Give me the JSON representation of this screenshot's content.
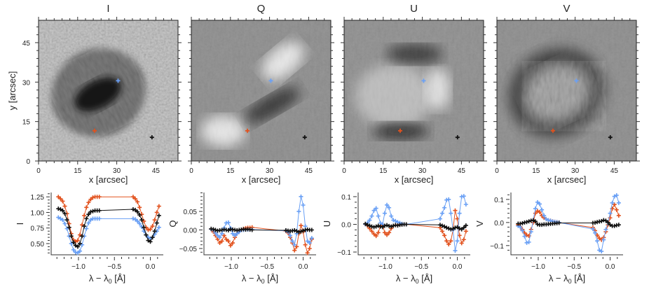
{
  "colors": {
    "blue": "#6aa0f5",
    "red": "#e2521e",
    "black": "#111111"
  },
  "images": {
    "x_label": "x [arcsec]",
    "y_label": "y [arcsec]",
    "x_ticks": [
      "0",
      "15",
      "30",
      "45"
    ],
    "y_ticks": [
      "0",
      "15",
      "30",
      "45"
    ],
    "range_arcsec": [
      0,
      53.5
    ],
    "markers": [
      {
        "color": "blue",
        "x": 30.5,
        "y": 30.5
      },
      {
        "color": "red",
        "x": 21.5,
        "y": 11.5
      },
      {
        "color": "black",
        "x": 43.5,
        "y": 9
      }
    ],
    "panels": [
      {
        "title": "I",
        "style": "intensity"
      },
      {
        "title": "Q",
        "style": "linear-q"
      },
      {
        "title": "U",
        "style": "linear-u"
      },
      {
        "title": "V",
        "style": "circular"
      }
    ]
  },
  "chart_data": [
    {
      "type": "line",
      "ylabel": "I",
      "xlabel": "λ − λ0 [Å]",
      "xlim": [
        -1.38,
        0.18
      ],
      "ylim": [
        0.32,
        1.32
      ],
      "x_ticks": [
        -1.0,
        -0.5,
        0.0
      ],
      "x_tick_labels": [
        "−1.0",
        "−0.5",
        "0.0"
      ],
      "y_ticks": [
        0.5,
        0.75,
        1.0,
        1.25
      ],
      "y_tick_labels": [
        "0.50",
        "0.75",
        "1.00",
        "1.25"
      ],
      "x": [
        -1.28,
        -1.25,
        -1.22,
        -1.19,
        -1.16,
        -1.13,
        -1.1,
        -1.07,
        -1.04,
        -1.01,
        -0.98,
        -0.95,
        -0.92,
        -0.89,
        -0.86,
        -0.83,
        -0.8,
        -0.77,
        -0.74,
        -0.71,
        -0.24,
        -0.21,
        -0.18,
        -0.15,
        -0.12,
        -0.09,
        -0.06,
        -0.03,
        0.0,
        0.03,
        0.06,
        0.09,
        0.12
      ],
      "series": [
        {
          "color": "red",
          "values": [
            1.25,
            1.22,
            1.18,
            1.1,
            0.98,
            0.82,
            0.66,
            0.56,
            0.53,
            0.55,
            0.64,
            0.8,
            0.95,
            1.08,
            1.16,
            1.21,
            1.24,
            1.25,
            1.25,
            1.25,
            1.25,
            1.22,
            1.17,
            1.08,
            0.97,
            0.86,
            0.76,
            0.72,
            0.73,
            0.78,
            0.88,
            1.0,
            1.1
          ]
        },
        {
          "color": "blue",
          "values": [
            0.92,
            0.9,
            0.88,
            0.82,
            0.74,
            0.62,
            0.5,
            0.4,
            0.36,
            0.35,
            0.38,
            0.48,
            0.62,
            0.74,
            0.83,
            0.88,
            0.9,
            0.9,
            0.9,
            0.9,
            0.9,
            0.89,
            0.86,
            0.82,
            0.77,
            0.7,
            0.64,
            0.6,
            0.58,
            0.6,
            0.65,
            0.7,
            0.76
          ]
        },
        {
          "color": "black",
          "values": [
            1.06,
            1.05,
            1.03,
            0.98,
            0.88,
            0.76,
            0.62,
            0.52,
            0.47,
            0.45,
            0.5,
            0.62,
            0.78,
            0.9,
            0.97,
            1.01,
            1.02,
            1.03,
            1.03,
            1.03,
            1.05,
            1.04,
            1.01,
            0.96,
            0.88,
            0.76,
            0.64,
            0.55,
            0.53,
            0.6,
            0.7,
            0.83,
            0.95
          ]
        }
      ]
    },
    {
      "type": "line",
      "ylabel": "Q",
      "xlabel": "λ − λ0 [Å]",
      "xlim": [
        -1.38,
        0.18
      ],
      "ylim": [
        -0.067,
        0.101
      ],
      "x_ticks": [
        -1.0,
        -0.5,
        0.0
      ],
      "x_tick_labels": [
        "−1.0",
        "−0.5",
        "0.0"
      ],
      "y_ticks": [
        -0.05,
        0.0,
        0.05
      ],
      "y_tick_labels": [
        "−0.05",
        "0.00",
        "0.05"
      ],
      "x": [
        -1.28,
        -1.25,
        -1.22,
        -1.19,
        -1.16,
        -1.13,
        -1.1,
        -1.07,
        -1.04,
        -1.01,
        -0.98,
        -0.95,
        -0.92,
        -0.89,
        -0.86,
        -0.83,
        -0.8,
        -0.77,
        -0.74,
        -0.71,
        -0.24,
        -0.21,
        -0.18,
        -0.15,
        -0.12,
        -0.09,
        -0.06,
        -0.03,
        0.0,
        0.03,
        0.06,
        0.09,
        0.12
      ],
      "series": [
        {
          "color": "red",
          "values": [
            0.002,
            -0.005,
            -0.015,
            -0.025,
            -0.035,
            -0.03,
            -0.015,
            -0.025,
            -0.03,
            -0.042,
            -0.035,
            -0.02,
            -0.01,
            -0.005,
            0.0,
            0.003,
            0.005,
            0.006,
            0.006,
            0.007,
            -0.003,
            -0.008,
            -0.02,
            -0.035,
            -0.055,
            -0.045,
            -0.01,
            0.012,
            -0.005,
            -0.04,
            -0.062,
            -0.05,
            -0.025
          ]
        },
        {
          "color": "blue",
          "values": [
            0.002,
            0.0,
            -0.008,
            -0.015,
            -0.02,
            -0.01,
            0.005,
            0.019,
            0.02,
            0.005,
            -0.01,
            -0.015,
            -0.01,
            -0.005,
            0.0,
            0.0,
            0.001,
            0.001,
            0.001,
            0.001,
            -0.002,
            -0.005,
            -0.015,
            -0.03,
            -0.04,
            -0.01,
            0.05,
            0.09,
            0.067,
            0.01,
            -0.03,
            -0.035,
            -0.022
          ]
        },
        {
          "color": "black",
          "values": [
            0.003,
            0.002,
            0.0,
            -0.002,
            -0.001,
            0.0,
            0.001,
            0.0,
            -0.001,
            0.002,
            0.001,
            0.0,
            -0.001,
            0.0,
            0.001,
            0.002,
            0.001,
            0.002,
            0.001,
            0.0,
            -0.001,
            -0.002,
            -0.003,
            -0.002,
            -0.001,
            -0.003,
            -0.006,
            -0.004,
            -0.002,
            0.0,
            0.001,
            0.0,
            0.0
          ]
        }
      ]
    },
    {
      "type": "line",
      "ylabel": "U",
      "xlabel": "λ − λ0 [Å]",
      "xlim": [
        -1.38,
        0.18
      ],
      "ylim": [
        -0.11,
        0.115
      ],
      "x_ticks": [
        -1.0,
        -0.5,
        0.0
      ],
      "x_tick_labels": [
        "−1.0",
        "−0.5",
        "0.0"
      ],
      "y_ticks": [
        -0.1,
        0.0,
        0.1
      ],
      "y_tick_labels": [
        "−0.1",
        "0.0",
        "0.1"
      ],
      "x": [
        -1.28,
        -1.25,
        -1.22,
        -1.19,
        -1.16,
        -1.13,
        -1.1,
        -1.07,
        -1.04,
        -1.01,
        -0.98,
        -0.95,
        -0.92,
        -0.89,
        -0.86,
        -0.83,
        -0.8,
        -0.77,
        -0.74,
        -0.71,
        -0.24,
        -0.21,
        -0.18,
        -0.15,
        -0.12,
        -0.09,
        -0.06,
        -0.03,
        0.0,
        0.03,
        0.06,
        0.09,
        0.12
      ],
      "series": [
        {
          "color": "red",
          "values": [
            0.0,
            -0.005,
            -0.015,
            -0.025,
            -0.035,
            -0.042,
            -0.03,
            -0.005,
            0.0,
            -0.03,
            -0.038,
            -0.03,
            -0.015,
            -0.005,
            -0.003,
            -0.002,
            -0.001,
            0.0,
            0.0,
            0.0,
            -0.012,
            -0.025,
            -0.04,
            -0.06,
            -0.072,
            -0.06,
            -0.02,
            0.05,
            0.02,
            -0.04,
            -0.068,
            -0.055,
            -0.025
          ]
        },
        {
          "color": "blue",
          "values": [
            0.0,
            0.005,
            0.015,
            0.03,
            0.05,
            0.058,
            0.03,
            0.005,
            0.0,
            0.04,
            0.07,
            0.06,
            0.03,
            0.015,
            0.012,
            0.008,
            0.005,
            0.002,
            0.0,
            0.0,
            0.02,
            0.04,
            0.06,
            0.088,
            0.09,
            0.04,
            -0.02,
            -0.095,
            -0.06,
            0.04,
            0.1,
            0.102,
            0.072
          ]
        },
        {
          "color": "black",
          "values": [
            0.002,
            -0.002,
            -0.005,
            -0.008,
            -0.01,
            -0.008,
            -0.005,
            -0.008,
            -0.01,
            -0.005,
            -0.003,
            -0.006,
            -0.008,
            -0.005,
            -0.003,
            -0.004,
            -0.002,
            -0.001,
            0.0,
            0.0,
            -0.002,
            -0.005,
            -0.008,
            -0.012,
            -0.015,
            -0.018,
            -0.016,
            -0.012,
            -0.01,
            -0.015,
            -0.018,
            -0.012,
            -0.004
          ]
        }
      ]
    },
    {
      "type": "line",
      "ylabel": "V",
      "xlabel": "λ − λ0 [Å]",
      "xlim": [
        -1.38,
        0.18
      ],
      "ylim": [
        -0.14,
        0.13
      ],
      "x_ticks": [
        -1.0,
        -0.5,
        0.0
      ],
      "x_tick_labels": [
        "−1.0",
        "−0.5",
        "0.0"
      ],
      "y_ticks": [
        -0.1,
        0.0,
        0.1
      ],
      "y_tick_labels": [
        "−0.1",
        "0.0",
        "0.1"
      ],
      "x": [
        -1.28,
        -1.25,
        -1.22,
        -1.19,
        -1.16,
        -1.13,
        -1.1,
        -1.07,
        -1.04,
        -1.01,
        -0.98,
        -0.95,
        -0.92,
        -0.89,
        -0.86,
        -0.83,
        -0.8,
        -0.77,
        -0.74,
        -0.71,
        -0.24,
        -0.21,
        -0.18,
        -0.15,
        -0.12,
        -0.09,
        -0.06,
        -0.03,
        0.0,
        0.03,
        0.06,
        0.09,
        0.12
      ],
      "series": [
        {
          "color": "red",
          "values": [
            -0.01,
            -0.018,
            -0.03,
            -0.045,
            -0.055,
            -0.058,
            -0.03,
            0.0,
            0.04,
            0.05,
            0.045,
            0.03,
            0.02,
            0.015,
            0.01,
            0.008,
            0.005,
            0.003,
            0.002,
            0.0,
            -0.022,
            -0.035,
            -0.055,
            -0.068,
            -0.075,
            -0.065,
            -0.04,
            -0.01,
            0.02,
            0.06,
            0.078,
            0.055,
            0.03
          ]
        },
        {
          "color": "blue",
          "values": [
            -0.015,
            -0.02,
            -0.035,
            -0.06,
            -0.088,
            -0.085,
            -0.04,
            0.01,
            0.06,
            0.088,
            0.08,
            0.055,
            0.03,
            0.015,
            0.01,
            0.008,
            0.005,
            0.003,
            0.002,
            0.0,
            -0.028,
            -0.045,
            -0.08,
            -0.12,
            -0.125,
            -0.075,
            -0.03,
            0.0,
            0.04,
            0.085,
            0.113,
            0.118,
            0.085
          ]
        },
        {
          "color": "black",
          "values": [
            -0.005,
            -0.005,
            -0.003,
            0.0,
            0.002,
            0.005,
            0.008,
            0.01,
            0.005,
            -0.008,
            -0.01,
            -0.01,
            -0.008,
            -0.008,
            -0.007,
            -0.006,
            -0.005,
            -0.004,
            -0.003,
            -0.002,
            -0.002,
            -0.001,
            0.002,
            0.004,
            0.006,
            0.01,
            0.008,
            0.0,
            -0.01,
            -0.015,
            -0.015,
            -0.012,
            -0.01
          ]
        }
      ]
    }
  ]
}
